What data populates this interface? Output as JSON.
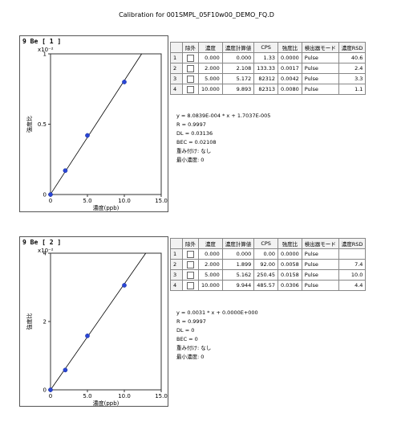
{
  "window": {
    "title": "Calibration for 001SMPL_05F10w00_DEMO_FQ.D"
  },
  "table_headers": [
    "",
    "除外",
    "濃度",
    "濃度計算値",
    "CPS",
    "強度比",
    "検出器モード",
    "濃度RSD"
  ],
  "sections": [
    {
      "label": "9  Be  [ 1 ]",
      "scale": "x10⁻²",
      "x_axis_label": "濃度(ppb)",
      "y_axis_label": "強度比",
      "rows": [
        {
          "index": "1",
          "excluded": false,
          "conc": "0.000",
          "calc": "0.000",
          "cps": "1.33",
          "ratio": "0.0000",
          "mode": "Pulse",
          "rsd": "40.6"
        },
        {
          "index": "2",
          "excluded": false,
          "conc": "2.000",
          "calc": "2.108",
          "cps": "133.33",
          "ratio": "0.0017",
          "mode": "Pulse",
          "rsd": "2.4"
        },
        {
          "index": "3",
          "excluded": false,
          "conc": "5.000",
          "calc": "5.172",
          "cps": "82312",
          "ratio": "0.0042",
          "mode": "Pulse",
          "rsd": "3.3"
        },
        {
          "index": "4",
          "excluded": false,
          "conc": "10.000",
          "calc": "9.893",
          "cps": "82313",
          "ratio": "0.0080",
          "mode": "Pulse",
          "rsd": "1.1"
        }
      ],
      "equation": "y = 8.0839E-004 * x  + 1.7037E-005",
      "r": "R = 0.9997",
      "dl": "DL = 0.03136",
      "bec": "BEC = 0.02108",
      "weighting": "重み付け: なし",
      "min_conc": "最小濃度: 0"
    },
    {
      "label": "9  Be  [ 2 ]",
      "scale": "x10⁻²",
      "x_axis_label": "濃度(ppb)",
      "y_axis_label": "強度比",
      "rows": [
        {
          "index": "1",
          "excluded": false,
          "conc": "0.000",
          "calc": "0.000",
          "cps": "0.00",
          "ratio": "0.0000",
          "mode": "Pulse",
          "rsd": ""
        },
        {
          "index": "2",
          "excluded": false,
          "conc": "2.000",
          "calc": "1.899",
          "cps": "92.00",
          "ratio": "0.0058",
          "mode": "Pulse",
          "rsd": "7.4"
        },
        {
          "index": "3",
          "excluded": false,
          "conc": "5.000",
          "calc": "5.162",
          "cps": "250.45",
          "ratio": "0.0158",
          "mode": "Pulse",
          "rsd": "10.0"
        },
        {
          "index": "4",
          "excluded": false,
          "conc": "10.000",
          "calc": "9.944",
          "cps": "485.57",
          "ratio": "0.0306",
          "mode": "Pulse",
          "rsd": "4.4"
        }
      ],
      "equation": "y = 0.0031 * x  + 0.0000E+000",
      "r": "R = 0.9997",
      "dl": "DL = 0",
      "bec": "BEC = 0",
      "weighting": "重み付け: なし",
      "min_conc": "最小濃度: 0"
    }
  ],
  "chart_data": [
    {
      "type": "scatter",
      "title": "9  Be  [ 1 ]",
      "xlabel": "濃度(ppb)",
      "ylabel": "強度比",
      "y_scale_note": "x10⁻²",
      "xlim": [
        0,
        15
      ],
      "ylim": [
        0,
        1.0
      ],
      "x_ticks": [
        "0",
        "5.0",
        "10.0",
        "15.0"
      ],
      "y_ticks": [
        "0",
        "0.5",
        "1"
      ],
      "points": [
        {
          "x": 0,
          "y": 0.0
        },
        {
          "x": 2,
          "y": 0.17
        },
        {
          "x": 5,
          "y": 0.42
        },
        {
          "x": 10,
          "y": 0.8
        }
      ],
      "fit": {
        "slope": 0.080839,
        "intercept": 0.0017,
        "x_range": [
          0,
          15
        ]
      },
      "colors": {
        "points": "#2a46d6",
        "line": "#000000"
      }
    },
    {
      "type": "scatter",
      "title": "9  Be  [ 2 ]",
      "xlabel": "濃度(ppb)",
      "ylabel": "強度比",
      "y_scale_note": "x10⁻²",
      "xlim": [
        0,
        15
      ],
      "ylim": [
        0,
        4.0
      ],
      "x_ticks": [
        "0",
        "5.0",
        "10.0",
        "15.0"
      ],
      "y_ticks": [
        "0",
        "2",
        "4"
      ],
      "points": [
        {
          "x": 0,
          "y": 0.0
        },
        {
          "x": 2,
          "y": 0.58
        },
        {
          "x": 5,
          "y": 1.58
        },
        {
          "x": 10,
          "y": 3.06
        }
      ],
      "fit": {
        "slope": 0.31,
        "intercept": 0.0,
        "x_range": [
          0,
          15
        ]
      },
      "colors": {
        "points": "#2a46d6",
        "line": "#000000"
      }
    }
  ]
}
